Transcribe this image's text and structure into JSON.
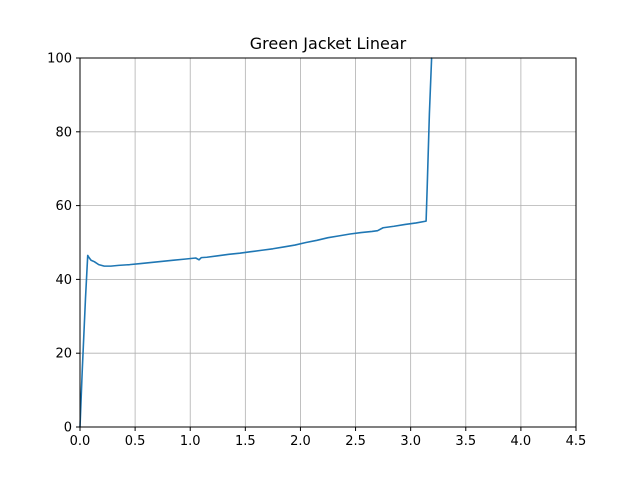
{
  "chart_data": {
    "type": "line",
    "title": "Green Jacket Linear",
    "xlabel": "",
    "ylabel": "",
    "xlim": [
      0.0,
      4.5
    ],
    "ylim": [
      0,
      100
    ],
    "grid": true,
    "x_ticks": [
      "0.0",
      "0.5",
      "1.0",
      "1.5",
      "2.0",
      "2.5",
      "3.0",
      "3.5",
      "4.0",
      "4.5"
    ],
    "y_ticks": [
      "0",
      "20",
      "40",
      "60",
      "80",
      "100"
    ],
    "series": [
      {
        "color": "#1f77b4",
        "x": [
          0.0,
          0.02,
          0.05,
          0.07,
          0.08,
          0.1,
          0.13,
          0.17,
          0.22,
          0.28,
          0.35,
          0.45,
          0.55,
          0.65,
          0.75,
          0.85,
          0.95,
          1.05,
          1.08,
          1.1,
          1.15,
          1.25,
          1.35,
          1.45,
          1.55,
          1.65,
          1.75,
          1.85,
          1.95,
          2.05,
          2.15,
          2.25,
          2.35,
          2.45,
          2.55,
          2.65,
          2.7,
          2.75,
          2.85,
          2.95,
          3.05,
          3.14,
          3.15,
          3.17,
          3.19
        ],
        "y": [
          0,
          15,
          35,
          46.5,
          46.0,
          45.2,
          44.8,
          44.0,
          43.6,
          43.6,
          43.8,
          44.0,
          44.3,
          44.6,
          44.9,
          45.2,
          45.5,
          45.8,
          45.3,
          45.9,
          46.0,
          46.4,
          46.8,
          47.1,
          47.5,
          47.9,
          48.3,
          48.8,
          49.3,
          50.0,
          50.6,
          51.3,
          51.8,
          52.3,
          52.7,
          53.0,
          53.2,
          54.0,
          54.4,
          54.9,
          55.3,
          55.8,
          65,
          85,
          100
        ]
      }
    ]
  }
}
